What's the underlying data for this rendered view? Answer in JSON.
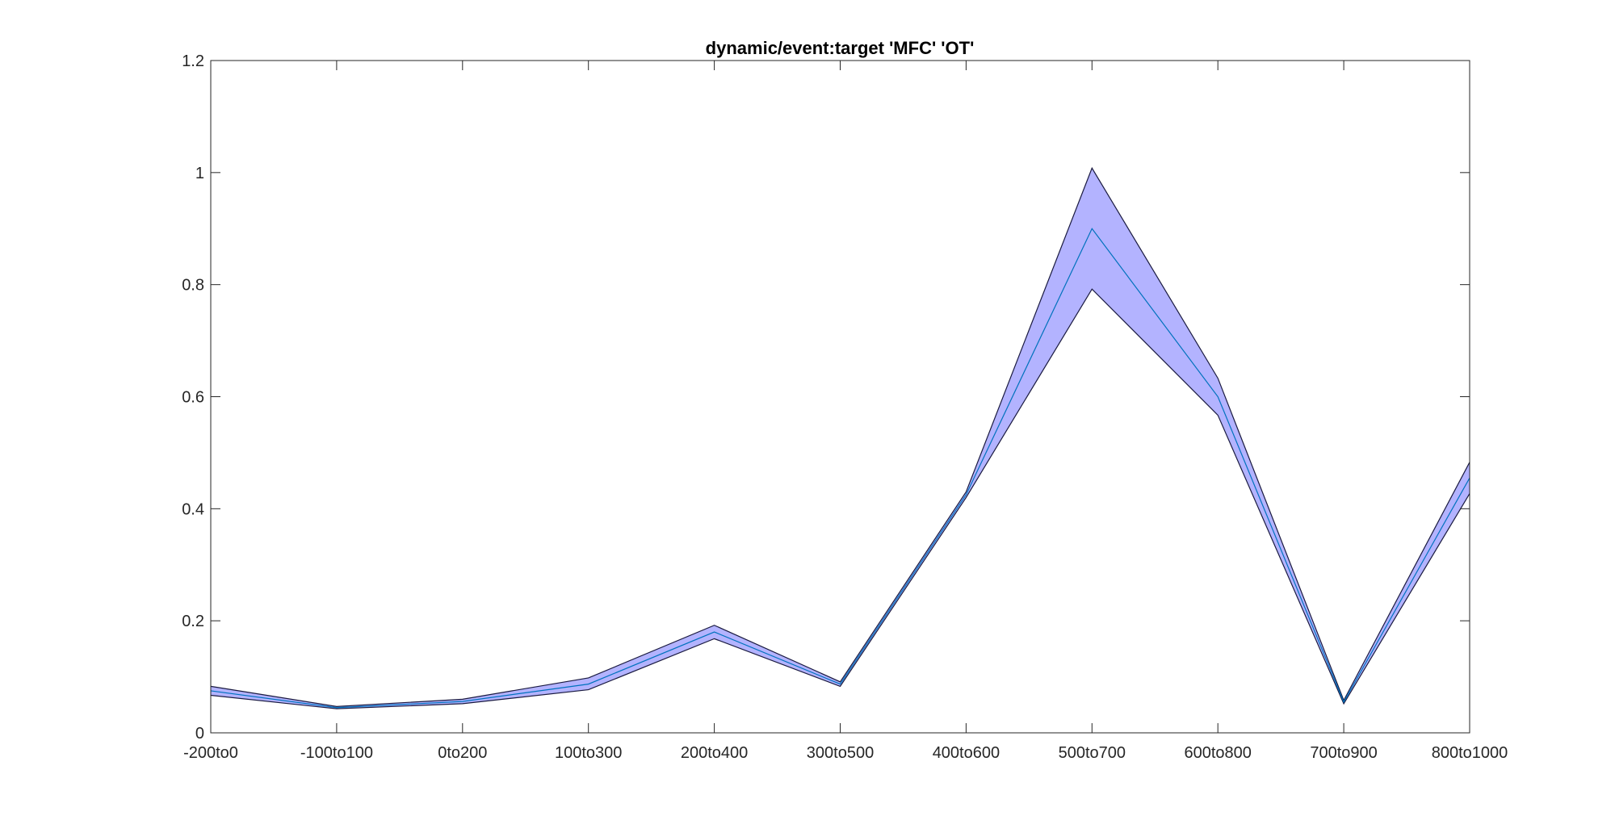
{
  "chart_data": {
    "type": "area",
    "title": "dynamic/event:target 'MFC'  'OT'",
    "xlabel": "",
    "ylabel": "",
    "categories": [
      "-200to0",
      "-100to100",
      "0to200",
      "100to300",
      "200to400",
      "300to500",
      "400to600",
      "500to700",
      "600to800",
      "700to900",
      "800to1000"
    ],
    "yticks": [
      "0",
      "0.2",
      "0.4",
      "0.6",
      "0.8",
      "1",
      "1.2"
    ],
    "ylim": [
      0,
      1.2
    ],
    "grid": false,
    "series": [
      {
        "role": "mean",
        "values": [
          0.075,
          0.045,
          0.056,
          0.087,
          0.18,
          0.087,
          0.425,
          0.9,
          0.6,
          0.055,
          0.455
        ]
      },
      {
        "role": "upper",
        "values": [
          0.083,
          0.047,
          0.06,
          0.098,
          0.192,
          0.091,
          0.43,
          1.008,
          0.633,
          0.058,
          0.483
        ]
      },
      {
        "role": "lower",
        "values": [
          0.067,
          0.043,
          0.052,
          0.077,
          0.168,
          0.083,
          0.42,
          0.792,
          0.567,
          0.052,
          0.427
        ]
      }
    ],
    "colors": {
      "band_fill": "#b3b3ff",
      "band_edge": "#1a1a40",
      "mean_line": "#0072bd",
      "axes": "#262626"
    }
  }
}
